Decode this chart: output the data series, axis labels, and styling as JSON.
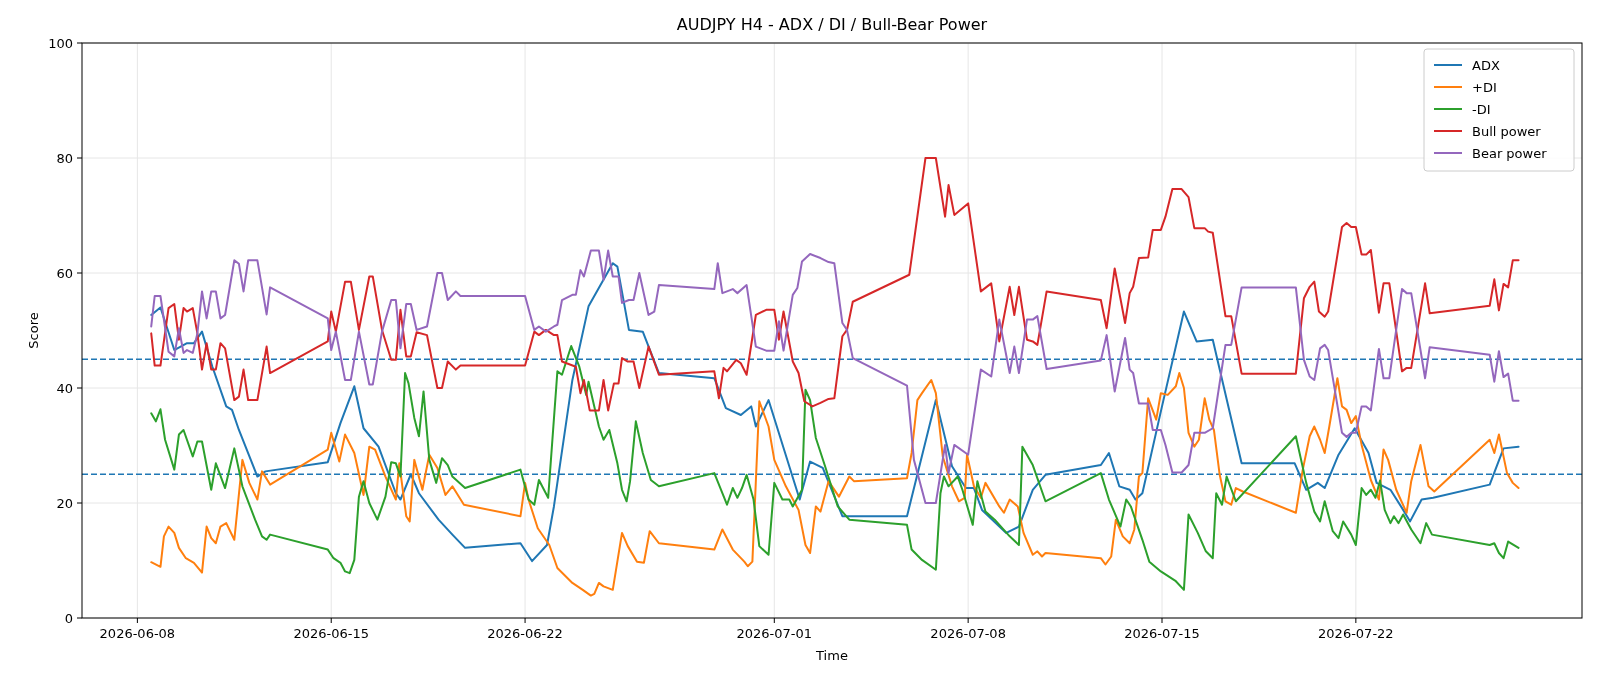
{
  "chart_data": {
    "type": "line",
    "title": "AUDJPY H4 - ADX / DI / Bull-Bear Power",
    "xlabel": "Time",
    "ylabel": "Score",
    "xlim": [
      "2026-06-06",
      "2026-07-30T04:00"
    ],
    "xticks": [
      "2026-06-08",
      "2026-06-15",
      "2026-06-22",
      "2026-07-01",
      "2026-07-08",
      "2026-07-15",
      "2026-07-22"
    ],
    "ylim": [
      0,
      100
    ],
    "yticks": [
      0,
      20,
      40,
      60,
      80,
      100
    ],
    "grid": true,
    "legend": "top right",
    "ref_lines": [
      {
        "axis": "y",
        "value": 45,
        "color": "#1f77b4",
        "line_style": "dashed"
      },
      {
        "axis": "y",
        "value": 25,
        "color": "#1f77b4",
        "line_style": "dashed"
      }
    ],
    "series": [
      {
        "name": "ADX",
        "color": "#1f77b4",
        "x": [
          "2026-06-08T12:00",
          "2026-06-08T20:00",
          "2026-06-09T08:00",
          "2026-06-09T19:00",
          "2026-06-10T01:00",
          "2026-06-10T08:00",
          "2026-06-10T17:00",
          "2026-06-11T05:00",
          "2026-06-11T10:00",
          "2026-06-11T16:00",
          "2026-06-12T08:00",
          "2026-06-12T15:00",
          "2026-06-14T21:00",
          "2026-06-15T08:00",
          "2026-06-15T20:00",
          "2026-06-16T04:00",
          "2026-06-16T17:00",
          "2026-06-17T08:00",
          "2026-06-17T12:00",
          "2026-06-17T21:00",
          "2026-06-18T04:00",
          "2026-06-18T21:00",
          "2026-06-19T09:00",
          "2026-06-19T20:00",
          "2026-06-21T20:00",
          "2026-06-22T06:00",
          "2026-06-22T19:00",
          "2026-06-23T01:00",
          "2026-06-23T17:00",
          "2026-06-24T07:00",
          "2026-06-25T04:00",
          "2026-06-25T08:00",
          "2026-06-25T18:00",
          "2026-06-26T06:00",
          "2026-06-26T20:00",
          "2026-06-28T20:00",
          "2026-06-29T06:00",
          "2026-06-29T19:00",
          "2026-06-30T04:00",
          "2026-06-30T08:00",
          "2026-06-30T19:00",
          "2026-07-01T22:00",
          "2026-07-02T07:00",
          "2026-07-02T18:00",
          "2026-07-03T11:00",
          "2026-07-05T19:00",
          "2026-07-06T20:00",
          "2026-07-07T10:00",
          "2026-07-07T22:00",
          "2026-07-08T05:00",
          "2026-07-08T12:00",
          "2026-07-09T09:00",
          "2026-07-09T20:00",
          "2026-07-10T08:00",
          "2026-07-10T19:00",
          "2026-07-12T19:00",
          "2026-07-13T02:00",
          "2026-07-13T11:00",
          "2026-07-13T20:00",
          "2026-07-14T01:00",
          "2026-07-14T07:00",
          "2026-07-15T00:00",
          "2026-07-15T19:00",
          "2026-07-16T06:00",
          "2026-07-16T20:00",
          "2026-07-17T21:00",
          "2026-07-19T19:00",
          "2026-07-20T05:00",
          "2026-07-20T15:00",
          "2026-07-20T21:00",
          "2026-07-21T09:00",
          "2026-07-21T23:00",
          "2026-07-22T11:00",
          "2026-07-22T18:00",
          "2026-07-23T06:00",
          "2026-07-23T17:00",
          "2026-07-23T23:00",
          "2026-07-24T09:00",
          "2026-07-24T19:00",
          "2026-07-26T20:00",
          "2026-07-27T08:00",
          "2026-07-27T21:00"
        ],
        "values": [
          52.7,
          54,
          46.6,
          47.8,
          47.8,
          49.8,
          43.7,
          36.8,
          36.2,
          32.7,
          24.6,
          25.5,
          27.1,
          33.9,
          40.3,
          33,
          29.8,
          21.7,
          20.6,
          25,
          21.7,
          17.1,
          14.5,
          12.2,
          13.0,
          9.9,
          12.7,
          19.4,
          41.4,
          54.2,
          61.7,
          61.1,
          50.1,
          49.8,
          42.6,
          41.7,
          36.5,
          35.3,
          36.8,
          33.3,
          37.9,
          20.6,
          27.2,
          26.1,
          17.7,
          17.7,
          37.9,
          26.4,
          22.6,
          22.6,
          18.8,
          14.8,
          15.9,
          22.3,
          24.9,
          26.6,
          28.7,
          22.9,
          22.3,
          20.6,
          21.7,
          36.8,
          53.3,
          48.1,
          48.4,
          26.9,
          26.9,
          22.3,
          23.5,
          22.6,
          28.4,
          33,
          28.7,
          23.5,
          22.3,
          18.8,
          16.8,
          20.6,
          20.9,
          23.2,
          29.5,
          29.8
        ]
      },
      {
        "name": "+DI",
        "color": "#ff7f0e",
        "x": [
          "2026-06-08T12:00",
          "2026-06-08T20:00",
          "2026-06-08T23:00",
          "2026-06-09T03:00",
          "2026-06-09T08:00",
          "2026-06-09T12:00",
          "2026-06-09T18:00",
          "2026-06-10T01:00",
          "2026-06-10T08:00",
          "2026-06-10T12:00",
          "2026-06-10T16:00",
          "2026-06-10T20:00",
          "2026-06-11T00:00",
          "2026-06-11T05:00",
          "2026-06-11T12:00",
          "2026-06-11T19:00",
          "2026-06-12T01:00",
          "2026-06-12T08:00",
          "2026-06-12T12:00",
          "2026-06-12T19:00",
          "2026-06-14T21:00",
          "2026-06-15T00:00",
          "2026-06-15T07:00",
          "2026-06-15T12:00",
          "2026-06-15T20:00",
          "2026-06-16T04:00",
          "2026-06-16T09:00",
          "2026-06-16T14:00",
          "2026-06-16T23:00",
          "2026-06-17T08:00",
          "2026-06-17T11:00",
          "2026-06-17T17:00",
          "2026-06-17T20:00",
          "2026-06-18T00:00",
          "2026-06-18T07:00",
          "2026-06-18T13:00",
          "2026-06-18T20:00",
          "2026-06-19T03:00",
          "2026-06-19T09:00",
          "2026-06-19T19:00",
          "2026-06-21T20:00",
          "2026-06-22T00:00",
          "2026-06-22T03:00",
          "2026-06-22T11:00",
          "2026-06-22T21:00",
          "2026-06-23T04:00",
          "2026-06-23T17:00",
          "2026-06-24T02:00",
          "2026-06-24T09:00",
          "2026-06-24T12:00",
          "2026-06-24T16:00",
          "2026-06-24T20:00",
          "2026-06-25T04:00",
          "2026-06-25T12:00",
          "2026-06-25T17:00",
          "2026-06-26T01:00",
          "2026-06-26T07:00",
          "2026-06-26T12:00",
          "2026-06-26T20:00",
          "2026-06-28T20:00",
          "2026-06-29T03:00",
          "2026-06-29T12:00",
          "2026-06-29T22:00",
          "2026-06-30T01:00",
          "2026-06-30T05:00",
          "2026-06-30T11:00",
          "2026-06-30T19:00",
          "2026-07-01T00:00",
          "2026-07-01T10:00",
          "2026-07-01T21:00",
          "2026-07-02T03:00",
          "2026-07-02T07:00",
          "2026-07-02T12:00",
          "2026-07-02T16:00",
          "2026-07-02T23:00",
          "2026-07-03T08:00",
          "2026-07-03T17:00",
          "2026-07-03T21:00",
          "2026-07-05T19:00",
          "2026-07-05T23:00",
          "2026-07-06T04:00",
          "2026-07-06T08:00",
          "2026-07-06T16:00",
          "2026-07-06T20:00",
          "2026-07-07T02:00",
          "2026-07-07T10:00",
          "2026-07-07T16:00",
          "2026-07-07T21:00",
          "2026-07-07T23:00",
          "2026-07-08T05:00",
          "2026-07-08T11:00",
          "2026-07-08T15:00",
          "2026-07-09T03:00",
          "2026-07-09T07:00",
          "2026-07-09T12:00",
          "2026-07-09T19:00",
          "2026-07-10T00:00",
          "2026-07-10T08:00",
          "2026-07-10T12:00",
          "2026-07-10T16:00",
          "2026-07-10T19:00",
          "2026-07-12T19:00",
          "2026-07-12T23:00",
          "2026-07-13T04:00",
          "2026-07-13T08:00",
          "2026-07-13T14:00",
          "2026-07-13T20:00",
          "2026-07-14T00:00",
          "2026-07-14T04:00",
          "2026-07-14T07:00",
          "2026-07-14T12:00",
          "2026-07-14T19:00",
          "2026-07-14T23:00",
          "2026-07-15T05:00",
          "2026-07-15T12:00",
          "2026-07-15T15:00",
          "2026-07-15T19:00",
          "2026-07-15T23:00",
          "2026-07-16T04:00",
          "2026-07-16T08:00",
          "2026-07-16T13:00",
          "2026-07-16T17:00",
          "2026-07-16T21:00",
          "2026-07-17T02:00",
          "2026-07-17T07:00",
          "2026-07-17T12:00",
          "2026-07-17T16:00",
          "2026-07-17T22:00",
          "2026-07-19T20:00",
          "2026-07-20T02:00",
          "2026-07-20T08:00",
          "2026-07-20T12:00",
          "2026-07-20T17:00",
          "2026-07-20T21:00",
          "2026-07-21T01:00",
          "2026-07-21T08:00",
          "2026-07-21T12:00",
          "2026-07-21T16:00",
          "2026-07-21T20:00",
          "2026-07-22T00:00",
          "2026-07-22T05:00",
          "2026-07-22T13:00",
          "2026-07-22T20:00",
          "2026-07-23T00:00",
          "2026-07-23T04:00",
          "2026-07-23T11:00",
          "2026-07-23T20:00",
          "2026-07-24T00:00",
          "2026-07-24T08:00",
          "2026-07-24T15:00",
          "2026-07-24T20:00",
          "2026-07-26T20:00",
          "2026-07-27T00:00",
          "2026-07-27T04:00",
          "2026-07-27T11:00",
          "2026-07-27T16:00",
          "2026-07-27T21:00"
        ],
        "values": [
          9.7,
          8.9,
          14.2,
          15.9,
          14.8,
          12.2,
          10.4,
          9.6,
          7.9,
          15.9,
          13.9,
          13,
          15.9,
          16.5,
          13.6,
          27.5,
          23.5,
          20.6,
          25.5,
          23.2,
          29.3,
          32.2,
          27.2,
          31.9,
          28.7,
          21.4,
          29.8,
          29.3,
          24.6,
          20.6,
          26.9,
          17.7,
          16.8,
          27.5,
          22.3,
          28.4,
          26.1,
          21.4,
          22.9,
          19.7,
          17.7,
          23.5,
          20.6,
          15.6,
          12.7,
          8.7,
          6.1,
          4.9,
          3.9,
          4.2,
          6.1,
          5.5,
          4.9,
          14.8,
          12.5,
          9.8,
          9.6,
          15.1,
          13,
          11.9,
          15.4,
          11.9,
          9.8,
          9,
          9.8,
          37.7,
          33.3,
          27.5,
          22.9,
          18.8,
          12.7,
          11.3,
          19.4,
          18.5,
          23.8,
          21.1,
          24.6,
          23.8,
          24.3,
          28.7,
          37.9,
          39.1,
          41.4,
          39.1,
          28.1,
          22.9,
          20.3,
          20.9,
          28.4,
          22.9,
          20.9,
          23.5,
          19.4,
          18.3,
          20.6,
          19.4,
          14.8,
          11,
          11.6,
          10.7,
          11.3,
          10.4,
          9.3,
          10.7,
          17.1,
          14.2,
          13,
          15.4,
          24.6,
          25.2,
          38.2,
          34.5,
          39.1,
          38.8,
          40.3,
          42.6,
          40,
          32.2,
          29.8,
          31,
          38.2,
          34.5,
          32.7,
          24.9,
          20.3,
          19.7,
          22.6,
          22,
          18.3,
          25.8,
          31.6,
          33.3,
          31,
          28.7,
          33.3,
          41.7,
          36.8,
          36.2,
          33.9,
          35.1,
          30.1,
          24,
          20.6,
          29.3,
          27.5,
          22.3,
          18.3,
          23.8,
          30.1,
          22.9,
          22,
          31,
          28.7,
          31.9,
          25.2,
          23.5,
          22.6
        ]
      },
      {
        "name": "-DI",
        "color": "#2ca02c",
        "x": [
          "2026-06-08T12:00",
          "2026-06-08T16:00",
          "2026-06-08T20:00",
          "2026-06-09T00:00",
          "2026-06-09T08:00",
          "2026-06-09T12:00",
          "2026-06-09T16:00",
          "2026-06-10T00:00",
          "2026-06-10T04:00",
          "2026-06-10T08:00",
          "2026-06-10T16:00",
          "2026-06-10T20:00",
          "2026-06-11T04:00",
          "2026-06-11T12:00",
          "2026-06-11T19:00",
          "2026-06-12T06:00",
          "2026-06-12T12:00",
          "2026-06-12T16:00",
          "2026-06-12T19:00",
          "2026-06-14T21:00",
          "2026-06-15T02:00",
          "2026-06-15T08:00",
          "2026-06-15T12:00",
          "2026-06-15T16:00",
          "2026-06-15T20:00",
          "2026-06-16T00:00",
          "2026-06-16T04:00",
          "2026-06-16T09:00",
          "2026-06-16T16:00",
          "2026-06-16T23:00",
          "2026-06-17T04:00",
          "2026-06-17T08:00",
          "2026-06-17T12:00",
          "2026-06-17T16:00",
          "2026-06-17T19:00",
          "2026-06-18T00:00",
          "2026-06-18T04:00",
          "2026-06-18T08:00",
          "2026-06-18T13:00",
          "2026-06-18T19:00",
          "2026-06-19T00:00",
          "2026-06-19T05:00",
          "2026-06-19T09:00",
          "2026-06-19T20:00",
          "2026-06-21T20:00",
          "2026-06-22T03:00",
          "2026-06-22T08:00",
          "2026-06-22T12:00",
          "2026-06-22T20:00",
          "2026-06-23T04:00",
          "2026-06-23T08:00",
          "2026-06-23T16:00",
          "2026-06-23T23:00",
          "2026-06-24T05:00",
          "2026-06-24T07:00",
          "2026-06-24T16:00",
          "2026-06-24T20:00",
          "2026-06-25T01:00",
          "2026-06-25T08:00",
          "2026-06-25T12:00",
          "2026-06-25T16:00",
          "2026-06-25T19:00",
          "2026-06-26T00:00",
          "2026-06-26T06:00",
          "2026-06-26T13:00",
          "2026-06-26T20:00",
          "2026-06-28T20:00",
          "2026-06-29T07:00",
          "2026-06-29T12:00",
          "2026-06-29T16:00",
          "2026-06-29T20:00",
          "2026-06-30T00:00",
          "2026-06-30T06:00",
          "2026-06-30T11:00",
          "2026-06-30T19:00",
          "2026-07-01T00:00",
          "2026-07-01T07:00",
          "2026-07-01T13:00",
          "2026-07-01T16:00",
          "2026-07-02T00:00",
          "2026-07-02T03:00",
          "2026-07-02T07:00",
          "2026-07-02T12:00",
          "2026-07-02T20:00",
          "2026-07-03T07:00",
          "2026-07-03T17:00",
          "2026-07-05T19:00",
          "2026-07-05T23:00",
          "2026-07-06T08:00",
          "2026-07-06T20:00",
          "2026-07-07T00:00",
          "2026-07-07T03:00",
          "2026-07-07T07:00",
          "2026-07-07T15:00",
          "2026-07-07T19:00",
          "2026-07-08T04:00",
          "2026-07-08T08:00",
          "2026-07-08T15:00",
          "2026-07-08T23:00",
          "2026-07-09T12:00",
          "2026-07-09T20:00",
          "2026-07-09T23:00",
          "2026-07-10T08:00",
          "2026-07-10T19:00",
          "2026-07-12T19:00",
          "2026-07-13T02:00",
          "2026-07-13T12:00",
          "2026-07-13T17:00",
          "2026-07-13T21:00",
          "2026-07-14T07:00",
          "2026-07-14T13:00",
          "2026-07-14T23:00",
          "2026-07-15T12:00",
          "2026-07-15T19:00",
          "2026-07-15T23:00",
          "2026-07-16T07:00",
          "2026-07-16T14:00",
          "2026-07-16T20:00",
          "2026-07-16T23:00",
          "2026-07-17T04:00",
          "2026-07-17T08:00",
          "2026-07-17T16:00",
          "2026-07-19T20:00",
          "2026-07-20T05:00",
          "2026-07-20T12:00",
          "2026-07-20T17:00",
          "2026-07-20T21:00",
          "2026-07-21T04:00",
          "2026-07-21T09:00",
          "2026-07-21T13:00",
          "2026-07-21T20:00",
          "2026-07-22T00:00",
          "2026-07-22T05:00",
          "2026-07-22T09:00",
          "2026-07-22T13:00",
          "2026-07-22T17:00",
          "2026-07-22T21:00",
          "2026-07-23T01:00",
          "2026-07-23T06:00",
          "2026-07-23T09:00",
          "2026-07-23T13:00",
          "2026-07-23T17:00",
          "2026-07-24T00:00",
          "2026-07-24T08:00",
          "2026-07-24T13:00",
          "2026-07-24T18:00",
          "2026-07-26T20:00",
          "2026-07-27T00:00",
          "2026-07-27T04:00",
          "2026-07-27T08:00",
          "2026-07-27T12:00",
          "2026-07-27T21:00"
        ],
        "values": [
          35.6,
          34.2,
          36.3,
          31,
          25.8,
          31.9,
          32.7,
          28.1,
          30.7,
          30.7,
          22.3,
          26.9,
          22.6,
          29.5,
          22.9,
          17.1,
          14.2,
          13.6,
          14.5,
          11.9,
          10.4,
          9.6,
          8.1,
          7.8,
          10.1,
          21.1,
          23.8,
          20,
          17.1,
          21.1,
          27.1,
          26.9,
          24.6,
          42.6,
          40.8,
          34.8,
          31.6,
          39.4,
          27.5,
          23.5,
          27.8,
          26.6,
          24.6,
          22.6,
          25.8,
          20.6,
          19.7,
          24,
          20.9,
          42.9,
          42.3,
          47.3,
          43.7,
          38.8,
          41.1,
          33.3,
          31,
          32.7,
          26.9,
          22.3,
          20.3,
          23.8,
          34.2,
          28.7,
          24,
          22.9,
          25.2,
          19.7,
          22.6,
          20.9,
          22.6,
          24.9,
          20.6,
          12.5,
          11,
          23.5,
          20.6,
          20.6,
          19.4,
          22.3,
          39.7,
          37.9,
          31.3,
          26.4,
          19.4,
          17.1,
          16.2,
          11.9,
          10.1,
          8.4,
          21.7,
          24.6,
          22.9,
          24.6,
          22.3,
          16.2,
          23.8,
          18.5,
          17.1,
          14.2,
          12.7,
          29.8,
          26.6,
          20.3,
          25.2,
          20.6,
          15.9,
          20.6,
          19.4,
          13.6,
          9.8,
          8.1,
          6.4,
          4.9,
          18,
          14.8,
          11.6,
          10.4,
          21.7,
          19.7,
          24.6,
          20.3,
          31.6,
          23.5,
          18.5,
          16.8,
          20.3,
          15.1,
          13.9,
          16.8,
          14.5,
          12.7,
          22.6,
          21.4,
          22.3,
          20.9,
          23.9,
          18.8,
          16.5,
          17.7,
          16.5,
          18,
          15.4,
          13,
          16.5,
          14.5,
          12.7,
          13,
          11.3,
          10.4,
          13.3,
          12.2
        ]
      },
      {
        "name": "Bull power",
        "color": "#d62728",
        "x": [
          "2026-06-08T12:00",
          "2026-06-08T15:00",
          "2026-06-08T20:00",
          "2026-06-09T03:00",
          "2026-06-09T08:00",
          "2026-06-09T12:00",
          "2026-06-09T16:00",
          "2026-06-09T19:00",
          "2026-06-10T00:00",
          "2026-06-10T04:00",
          "2026-06-10T08:00",
          "2026-06-10T12:00",
          "2026-06-10T16:00",
          "2026-06-10T20:00",
          "2026-06-11T00:00",
          "2026-06-11T04:00",
          "2026-06-11T12:00",
          "2026-06-11T16:00",
          "2026-06-11T20:00",
          "2026-06-12T00:00",
          "2026-06-12T08:00",
          "2026-06-12T16:00",
          "2026-06-12T19:00",
          "2026-06-14T21:00",
          "2026-06-15T00:00",
          "2026-06-15T04:00",
          "2026-06-15T12:00",
          "2026-06-15T17:00",
          "2026-06-16T00:00",
          "2026-06-16T09:00",
          "2026-06-16T12:00",
          "2026-06-16T20:00",
          "2026-06-17T04:00",
          "2026-06-17T08:00",
          "2026-06-17T12:00",
          "2026-06-17T17:00",
          "2026-06-17T21:00",
          "2026-06-18T02:00",
          "2026-06-18T11:00",
          "2026-06-18T20:00",
          "2026-06-19T00:00",
          "2026-06-19T05:00",
          "2026-06-19T12:00",
          "2026-06-19T16:00",
          "2026-06-22T00:00",
          "2026-06-22T08:00",
          "2026-06-22T12:00",
          "2026-06-22T18:00",
          "2026-06-23T01:00",
          "2026-06-23T04:00",
          "2026-06-23T08:00",
          "2026-06-23T20:00",
          "2026-06-24T00:00",
          "2026-06-24T03:00",
          "2026-06-24T08:00",
          "2026-06-24T16:00",
          "2026-06-24T20:00",
          "2026-06-25T00:00",
          "2026-06-25T05:00",
          "2026-06-25T09:00",
          "2026-06-25T12:00",
          "2026-06-25T17:00",
          "2026-06-25T22:00",
          "2026-06-26T03:00",
          "2026-06-26T11:00",
          "2026-06-26T20:00",
          "2026-06-28T20:00",
          "2026-06-29T00:00",
          "2026-06-29T04:00",
          "2026-06-29T07:00",
          "2026-06-29T15:00",
          "2026-06-29T19:00",
          "2026-06-30T00:00",
          "2026-06-30T08:00",
          "2026-06-30T17:00",
          "2026-07-01T00:00",
          "2026-07-01T04:00",
          "2026-07-01T08:00",
          "2026-07-01T16:00",
          "2026-07-01T21:00",
          "2026-07-02T02:00",
          "2026-07-02T09:00",
          "2026-07-02T16:00",
          "2026-07-02T23:00",
          "2026-07-03T04:00",
          "2026-07-03T11:00",
          "2026-07-03T15:00",
          "2026-07-03T20:00",
          "2026-07-05T21:00",
          "2026-07-06T11:00",
          "2026-07-06T20:00",
          "2026-07-07T04:00",
          "2026-07-07T07:00",
          "2026-07-07T12:00",
          "2026-07-08T00:00",
          "2026-07-08T11:00",
          "2026-07-08T20:00",
          "2026-07-09T03:00",
          "2026-07-09T12:00",
          "2026-07-09T16:00",
          "2026-07-09T20:00",
          "2026-07-10T03:00",
          "2026-07-10T08:00",
          "2026-07-10T12:00",
          "2026-07-10T20:00",
          "2026-07-12T19:00",
          "2026-07-13T00:00",
          "2026-07-13T07:00",
          "2026-07-13T16:00",
          "2026-07-13T20:00",
          "2026-07-13T23:00",
          "2026-07-14T04:00",
          "2026-07-14T12:00",
          "2026-07-14T16:00",
          "2026-07-14T23:00",
          "2026-07-15T03:00",
          "2026-07-15T09:00",
          "2026-07-15T17:00",
          "2026-07-15T23:00",
          "2026-07-16T04:00",
          "2026-07-16T13:00",
          "2026-07-16T16:00",
          "2026-07-16T20:00",
          "2026-07-17T07:00",
          "2026-07-17T12:00",
          "2026-07-17T21:00",
          "2026-07-19T20:00",
          "2026-07-20T03:00",
          "2026-07-20T08:00",
          "2026-07-20T12:00",
          "2026-07-20T16:00",
          "2026-07-20T21:00",
          "2026-07-21T00:00",
          "2026-07-21T12:00",
          "2026-07-21T16:00",
          "2026-07-21T20:00",
          "2026-07-22T00:00",
          "2026-07-22T05:00",
          "2026-07-22T09:00",
          "2026-07-22T13:00",
          "2026-07-22T20:00",
          "2026-07-23T00:00",
          "2026-07-23T05:00",
          "2026-07-23T16:00",
          "2026-07-23T20:00",
          "2026-07-24T00:00",
          "2026-07-24T12:00",
          "2026-07-24T16:00",
          "2026-07-26T20:00",
          "2026-07-27T00:00",
          "2026-07-27T04:00",
          "2026-07-27T08:00",
          "2026-07-27T12:00",
          "2026-07-27T16:00",
          "2026-07-27T21:00"
        ],
        "values": [
          49.5,
          43.9,
          43.9,
          53.9,
          54.6,
          48.4,
          53.9,
          53.3,
          53.9,
          49.5,
          43.2,
          47.8,
          43.2,
          43.2,
          47.8,
          46.9,
          37.9,
          38.5,
          43.2,
          37.9,
          37.9,
          47.2,
          42.6,
          48.1,
          53.3,
          49.8,
          58.5,
          58.5,
          50.1,
          59.4,
          59.4,
          50.1,
          44.9,
          44.9,
          53.6,
          45.5,
          45.5,
          49.7,
          49.2,
          40,
          40,
          44.6,
          43.2,
          43.9,
          43.9,
          49.8,
          49.2,
          50.1,
          49.2,
          49.2,
          44.6,
          43.7,
          39.1,
          41.4,
          36.1,
          36.1,
          41.4,
          36.1,
          40.8,
          40.8,
          45.2,
          44.6,
          44.6,
          40,
          47.2,
          42.3,
          42.9,
          38.2,
          43.5,
          42.9,
          44.9,
          44.3,
          42.3,
          52.7,
          53.6,
          53.6,
          48.4,
          53.3,
          44.6,
          42.6,
          37.7,
          36.8,
          37.4,
          38.1,
          38.2,
          49,
          50.1,
          55,
          59.7,
          80,
          80,
          69.8,
          75.3,
          70.1,
          72.1,
          56.8,
          58.2,
          48.1,
          57.6,
          52.7,
          57.6,
          48.4,
          48.1,
          47.5,
          56.8,
          55.3,
          50.4,
          60.8,
          51.3,
          56.5,
          57.6,
          62.6,
          62.7,
          67.5,
          67.5,
          69.8,
          74.6,
          74.6,
          73.2,
          67.8,
          67.8,
          67.2,
          67,
          52.5,
          52.5,
          42.5,
          42.5,
          55.6,
          57.6,
          58.5,
          53.3,
          52.4,
          53.3,
          68,
          68.7,
          68,
          68,
          63.2,
          63.2,
          64,
          53.1,
          58.2,
          58.2,
          42.9,
          43.5,
          43.5,
          58.2,
          53,
          54.3,
          58.9,
          53.5,
          58.1,
          57.5,
          62.2,
          62.2
        ]
      },
      {
        "name": "Bear power",
        "color": "#9467bd",
        "x": [
          "2026-06-08T12:00",
          "2026-06-08T15:00",
          "2026-06-08T20:00",
          "2026-06-09T03:00",
          "2026-06-09T08:00",
          "2026-06-09T12:00",
          "2026-06-09T16:00",
          "2026-06-09T19:00",
          "2026-06-10T00:00",
          "2026-06-10T04:00",
          "2026-06-10T08:00",
          "2026-06-10T12:00",
          "2026-06-10T16:00",
          "2026-06-10T20:00",
          "2026-06-11T00:00",
          "2026-06-11T04:00",
          "2026-06-11T12:00",
          "2026-06-11T16:00",
          "2026-06-11T20:00",
          "2026-06-12T00:00",
          "2026-06-12T08:00",
          "2026-06-12T16:00",
          "2026-06-12T19:00",
          "2026-06-14T21:00",
          "2026-06-15T00:00",
          "2026-06-15T04:00",
          "2026-06-15T12:00",
          "2026-06-15T17:00",
          "2026-06-16T00:00",
          "2026-06-16T09:00",
          "2026-06-16T12:00",
          "2026-06-16T20:00",
          "2026-06-17T04:00",
          "2026-06-17T08:00",
          "2026-06-17T12:00",
          "2026-06-17T17:00",
          "2026-06-17T21:00",
          "2026-06-18T02:00",
          "2026-06-18T11:00",
          "2026-06-18T20:00",
          "2026-06-19T00:00",
          "2026-06-19T05:00",
          "2026-06-19T12:00",
          "2026-06-19T16:00",
          "2026-06-22T00:00",
          "2026-06-22T08:00",
          "2026-06-22T12:00",
          "2026-06-22T18:00",
          "2026-06-23T01:00",
          "2026-06-23T04:00",
          "2026-06-23T08:00",
          "2026-06-23T17:00",
          "2026-06-23T20:00",
          "2026-06-24T00:00",
          "2026-06-24T03:00",
          "2026-06-24T09:00",
          "2026-06-24T16:00",
          "2026-06-24T20:00",
          "2026-06-25T00:00",
          "2026-06-25T04:00",
          "2026-06-25T09:00",
          "2026-06-25T12:00",
          "2026-06-25T18:00",
          "2026-06-25T22:00",
          "2026-06-26T03:00",
          "2026-06-26T11:00",
          "2026-06-26T16:00",
          "2026-06-26T20:00",
          "2026-06-28T20:00",
          "2026-06-28T23:00",
          "2026-06-29T03:00",
          "2026-06-29T07:00",
          "2026-06-29T12:00",
          "2026-06-29T16:00",
          "2026-06-30T00:00",
          "2026-06-30T08:00",
          "2026-06-30T17:00",
          "2026-07-01T00:00",
          "2026-07-01T04:00",
          "2026-07-01T08:00",
          "2026-07-01T16:00",
          "2026-07-01T20:00",
          "2026-07-02T00:00",
          "2026-07-02T07:00",
          "2026-07-02T16:00",
          "2026-07-02T23:00",
          "2026-07-03T04:00",
          "2026-07-03T11:00",
          "2026-07-03T15:00",
          "2026-07-03T20:00",
          "2026-07-05T19:00",
          "2026-07-06T01:00",
          "2026-07-06T11:00",
          "2026-07-06T20:00",
          "2026-07-07T04:00",
          "2026-07-07T07:00",
          "2026-07-07T12:00",
          "2026-07-08T00:00",
          "2026-07-08T11:00",
          "2026-07-08T20:00",
          "2026-07-09T03:00",
          "2026-07-09T12:00",
          "2026-07-09T16:00",
          "2026-07-09T20:00",
          "2026-07-10T03:00",
          "2026-07-10T08:00",
          "2026-07-10T12:00",
          "2026-07-10T20:00",
          "2026-07-12T19:00",
          "2026-07-13T00:00",
          "2026-07-13T07:00",
          "2026-07-13T16:00",
          "2026-07-13T20:00",
          "2026-07-13T23:00",
          "2026-07-14T04:00",
          "2026-07-14T12:00",
          "2026-07-14T16:00",
          "2026-07-14T23:00",
          "2026-07-15T03:00",
          "2026-07-15T09:00",
          "2026-07-15T17:00",
          "2026-07-15T23:00",
          "2026-07-16T04:00",
          "2026-07-16T13:00",
          "2026-07-16T20:00",
          "2026-07-17T07:00",
          "2026-07-17T12:00",
          "2026-07-17T21:00",
          "2026-07-19T20:00",
          "2026-07-20T03:00",
          "2026-07-20T08:00",
          "2026-07-20T12:00",
          "2026-07-20T17:00",
          "2026-07-20T21:00",
          "2026-07-21T00:00",
          "2026-07-21T12:00",
          "2026-07-21T16:00",
          "2026-07-21T20:00",
          "2026-07-22T00:00",
          "2026-07-22T05:00",
          "2026-07-22T09:00",
          "2026-07-22T13:00",
          "2026-07-22T20:00",
          "2026-07-23T00:00",
          "2026-07-23T05:00",
          "2026-07-23T16:00",
          "2026-07-23T20:00",
          "2026-07-24T00:00",
          "2026-07-24T12:00",
          "2026-07-24T16:00",
          "2026-07-26T20:00",
          "2026-07-27T00:00",
          "2026-07-27T04:00",
          "2026-07-27T08:00",
          "2026-07-27T12:00",
          "2026-07-27T16:00",
          "2026-07-27T21:00"
        ],
        "values": [
          50.7,
          56,
          56,
          46.3,
          45.5,
          50.4,
          46.1,
          46.6,
          46.1,
          49.5,
          56.8,
          52.1,
          56.8,
          56.8,
          52.1,
          52.7,
          62.2,
          61.6,
          56.8,
          62.2,
          62.2,
          52.8,
          57.5,
          52.1,
          46.6,
          49.8,
          41.4,
          41.4,
          49.8,
          40.6,
          40.6,
          49.8,
          55.3,
          55.3,
          46.9,
          54.6,
          54.6,
          50.1,
          50.7,
          60,
          60,
          55.3,
          56.8,
          56,
          56,
          50.1,
          50.7,
          49.8,
          50.7,
          51,
          55.3,
          56.2,
          56.2,
          60.5,
          59.4,
          63.9,
          63.9,
          58.8,
          63.9,
          59.4,
          59.4,
          54.8,
          55.3,
          55.3,
          60,
          52.7,
          53.3,
          57.9,
          57.2,
          61.7,
          56.5,
          56.8,
          57.2,
          56.5,
          57.9,
          47.2,
          46.5,
          46.5,
          51.6,
          46.5,
          56.2,
          57.4,
          62,
          63.3,
          62.6,
          61.9,
          61.7,
          51.3,
          50.1,
          45.2,
          40.4,
          27.5,
          20,
          20,
          30.1,
          25.2,
          30.1,
          28.4,
          43.2,
          42,
          51.9,
          42.6,
          47.2,
          42.6,
          51.9,
          51.9,
          52.5,
          43.3,
          44.8,
          49.2,
          39.4,
          48.7,
          43.2,
          42.6,
          37.3,
          37.3,
          32.7,
          32.7,
          30.1,
          25.3,
          25.3,
          26.6,
          32.2,
          32.2,
          33,
          47.5,
          47.5,
          57.5,
          57.5,
          44.9,
          42,
          41.4,
          46.9,
          47.5,
          46.6,
          32.2,
          31.5,
          32.2,
          32.2,
          36.8,
          36.8,
          36.1,
          46.8,
          41.7,
          41.7,
          57.2,
          56.5,
          56.5,
          41.7,
          47.1,
          45.8,
          41.1,
          46.4,
          41.9,
          42.5,
          37.8,
          37.8
        ]
      }
    ]
  }
}
